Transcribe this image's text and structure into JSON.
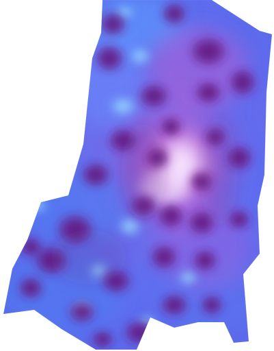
{
  "image": {
    "subject": "",
    "colors": {
      "background": "#ffffff",
      "tissue_base": "#6b62e0",
      "tissue_blue": "#5a78f0",
      "nuclei": "#6a1d86",
      "highlight": "#f5e9ff",
      "pink": "#d06fc8",
      "cyan": "#8fe6ff"
    }
  }
}
